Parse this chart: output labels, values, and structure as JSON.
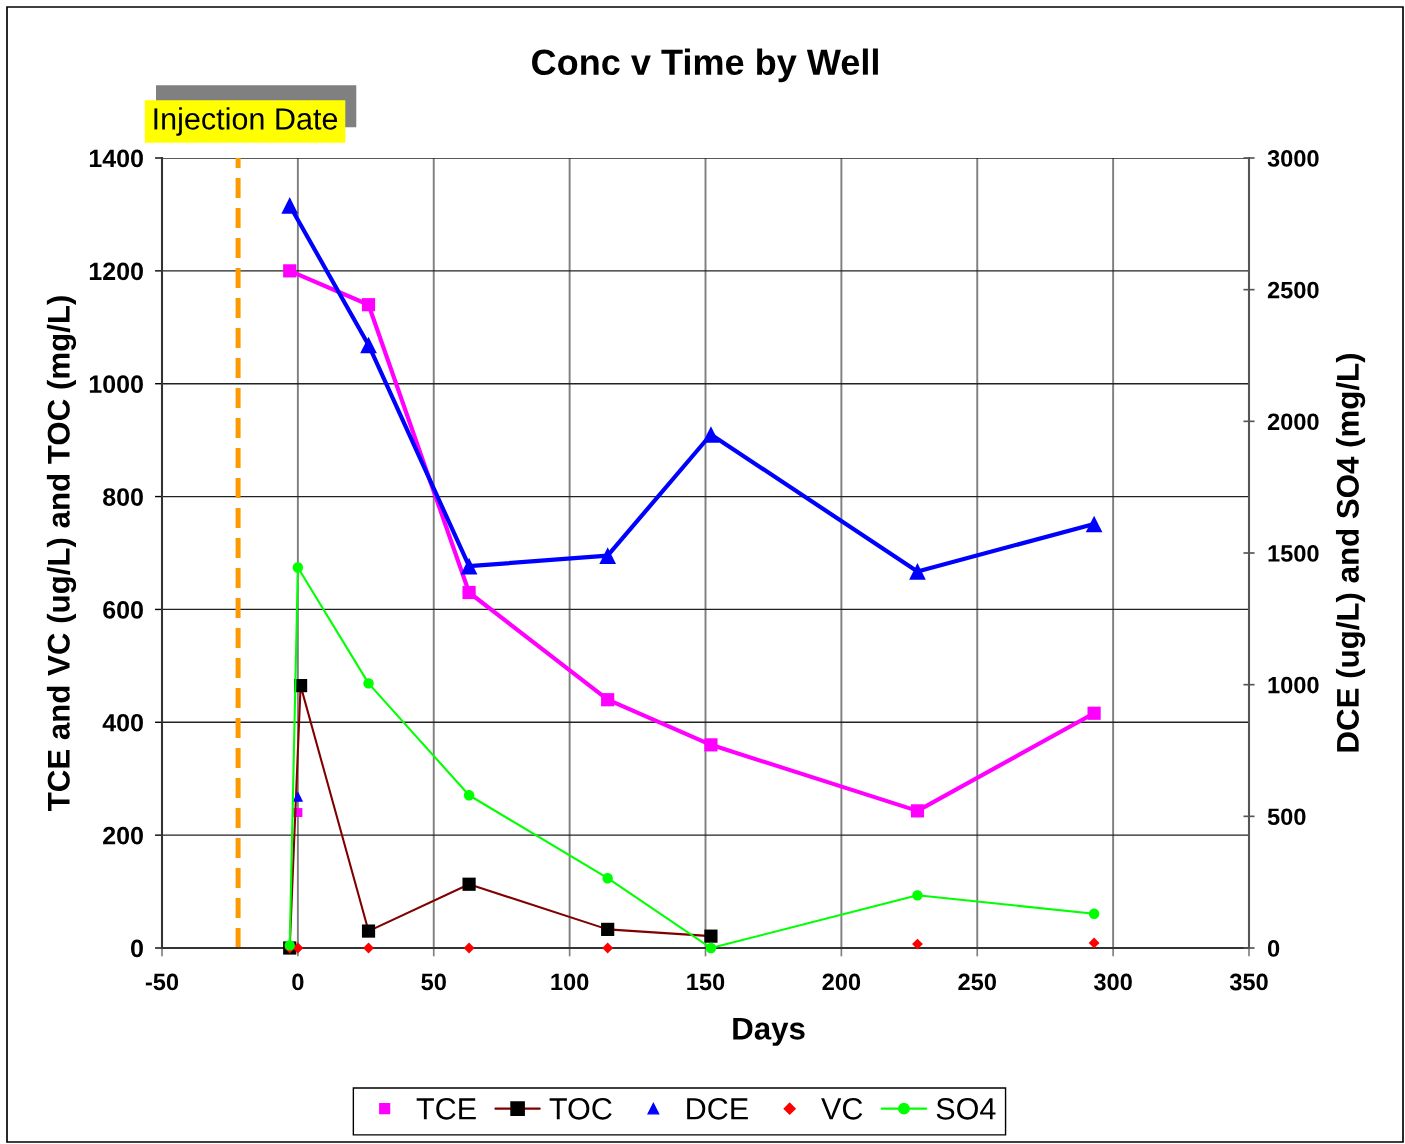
{
  "chart_data": {
    "type": "line",
    "title": "Conc v Time by Well",
    "xlabel": "Days",
    "ylabel": "TCE and VC (ug/L) and TOC (mg/L)",
    "y2label": "DCE (ug/L) and SO4 (mg/L)",
    "xlim": [
      -50,
      350
    ],
    "xticks": [
      -50,
      0,
      50,
      100,
      150,
      200,
      250,
      300,
      350
    ],
    "ylim": [
      0,
      1400
    ],
    "yticks": [
      0,
      200,
      400,
      600,
      800,
      1000,
      1200,
      1400
    ],
    "y2lim": [
      0,
      3000
    ],
    "y2ticks": [
      0,
      500,
      1000,
      1500,
      2000,
      2500,
      3000
    ],
    "grid": true,
    "legend": "bottom",
    "ref_lines": [
      {
        "axis": "x",
        "value": -22,
        "label": "Injection Date",
        "color": "#ff9900",
        "line_style": "dashed"
      }
    ],
    "series": [
      {
        "name": "TCE",
        "type": "scatter",
        "marker": "square",
        "color": "#ff00ff",
        "x": [
          0
        ],
        "values": [
          240
        ]
      },
      {
        "name": "TOC",
        "type": "line",
        "marker": "square",
        "color": "#800000",
        "colors": [
          "#000000",
          "#000000",
          "#000000",
          "#000000",
          "#000000",
          "#000000"
        ],
        "x": [
          -3,
          1,
          26,
          63,
          114,
          152
        ],
        "values": [
          0,
          465,
          30,
          113,
          33,
          21
        ]
      },
      {
        "name": "DCE",
        "type": "scatter",
        "marker": "triangle",
        "color": "#0000ff",
        "axis": "y2",
        "x": [
          0
        ],
        "values": [
          575
        ]
      },
      {
        "name": "VC",
        "type": "scatter",
        "marker": "diamond",
        "color": "#ff0000",
        "x": [
          -3,
          0,
          26,
          63,
          114,
          228,
          293
        ],
        "values": [
          0,
          0,
          0,
          0,
          0,
          7,
          9
        ]
      },
      {
        "name": "SO4",
        "type": "line",
        "marker": "circle",
        "color": "#00ff00",
        "axis": "y2",
        "x": [
          -3,
          0,
          26,
          63,
          114,
          152,
          228,
          293
        ],
        "values": [
          10,
          1445,
          1005,
          580,
          265,
          0,
          200,
          130
        ]
      },
      {
        "type": "line",
        "marker": "square",
        "color": "#ff00ff",
        "x": [
          -3,
          26,
          63,
          114,
          152,
          228,
          293
        ],
        "values": [
          1200,
          1140,
          630,
          440,
          360,
          243,
          416
        ]
      },
      {
        "type": "line",
        "marker": "triangle",
        "color": "#0000ff",
        "axis": "y2",
        "x": [
          -3,
          26,
          63,
          114,
          152,
          228,
          293
        ],
        "values": [
          2820,
          2290,
          1450,
          1490,
          1950,
          1430,
          1610
        ]
      }
    ]
  }
}
